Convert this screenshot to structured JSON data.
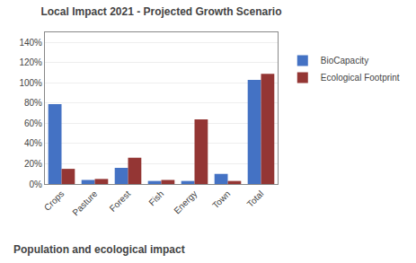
{
  "chart_data": {
    "type": "bar",
    "title": "Local Impact 2021 - Projected Growth Scenario",
    "subtitle": "Population and ecological impact",
    "categories": [
      "Crops",
      "Pasture",
      "Forest",
      "Fish",
      "Energy",
      "Town",
      "Total"
    ],
    "series": [
      {
        "name": "BioCapacity",
        "color": "#4472C4",
        "values": [
          0.79,
          0.04,
          0.16,
          0.03,
          0.03,
          0.1,
          1.03
        ]
      },
      {
        "name": "Ecological Footprint",
        "color": "#943634",
        "values": [
          0.15,
          0.05,
          0.26,
          0.04,
          0.64,
          0.03,
          1.09
        ]
      }
    ],
    "ylim": [
      0,
      1.5
    ],
    "yticks": [
      {
        "value": 0,
        "label": "0%"
      },
      {
        "value": 0.2,
        "label": "20%"
      },
      {
        "value": 0.4,
        "label": "40%"
      },
      {
        "value": 0.6,
        "label": "60%"
      },
      {
        "value": 0.8,
        "label": "80%"
      },
      {
        "value": 1.0,
        "label": "100%"
      },
      {
        "value": 1.2,
        "label": "120%"
      },
      {
        "value": 1.4,
        "label": "140%"
      }
    ],
    "grid": true,
    "legend": "right"
  }
}
